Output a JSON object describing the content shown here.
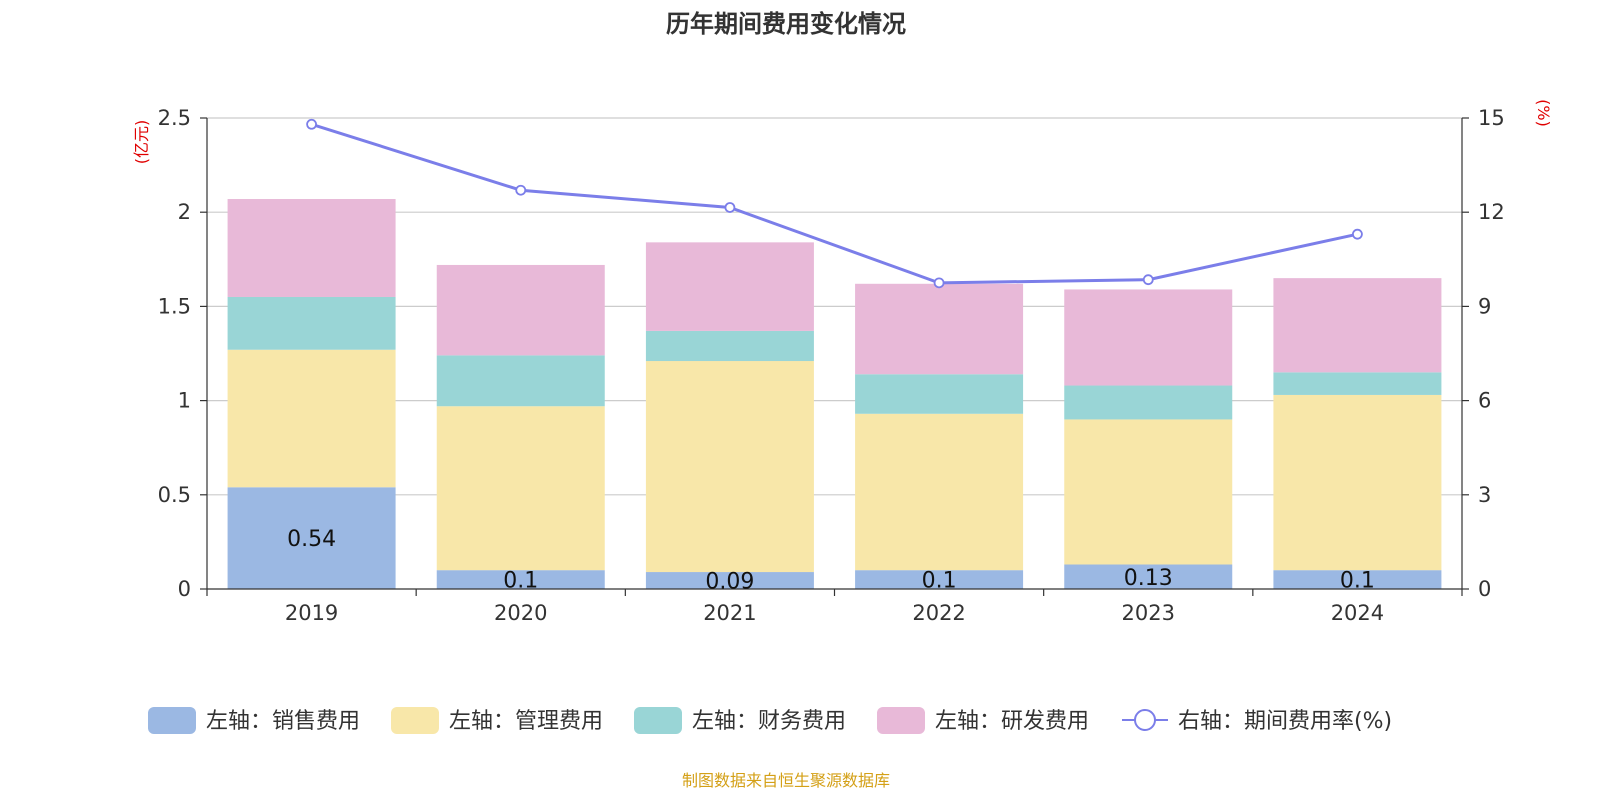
{
  "chart_data": {
    "type": "bar",
    "stacked": true,
    "title": "历年期间费用变化情况",
    "categories": [
      "2019",
      "2020",
      "2021",
      "2022",
      "2023",
      "2024"
    ],
    "y_left": {
      "unit_label": "(亿元)",
      "range": [
        0,
        2.5
      ],
      "ticks": [
        "0",
        "0.5",
        "1",
        "1.5",
        "2",
        "2.5"
      ]
    },
    "y_right": {
      "unit_label": "(%)",
      "range": [
        0,
        15
      ],
      "ticks": [
        "0",
        "3",
        "6",
        "9",
        "12",
        "15"
      ]
    },
    "grid": true,
    "legend_position": "bottom",
    "series": [
      {
        "name": "左轴：销售费用",
        "kind": "bar",
        "axis": "left",
        "color": "#9bb8e3",
        "values": [
          0.54,
          0.1,
          0.09,
          0.1,
          0.13,
          0.1
        ],
        "data_labels": [
          "0.54",
          "0.1",
          "0.09",
          "0.1",
          "0.13",
          "0.1"
        ]
      },
      {
        "name": "左轴：管理费用",
        "kind": "bar",
        "axis": "left",
        "color": "#f8e7a9",
        "values": [
          0.73,
          0.87,
          1.12,
          0.83,
          0.77,
          0.93
        ]
      },
      {
        "name": "左轴：财务费用",
        "kind": "bar",
        "axis": "left",
        "color": "#99d5d6",
        "values": [
          0.28,
          0.27,
          0.16,
          0.21,
          0.18,
          0.12
        ]
      },
      {
        "name": "左轴：研发费用",
        "kind": "bar",
        "axis": "left",
        "color": "#e8b9d8",
        "values": [
          0.52,
          0.48,
          0.47,
          0.48,
          0.51,
          0.5
        ]
      },
      {
        "name": "右轴：期间费用率(%)",
        "kind": "line",
        "axis": "right",
        "color": "#7b7ee9",
        "values": [
          14.8,
          12.7,
          12.15,
          9.75,
          9.85,
          11.3
        ]
      }
    ]
  },
  "footer": {
    "source": "制图数据来自恒生聚源数据库"
  }
}
